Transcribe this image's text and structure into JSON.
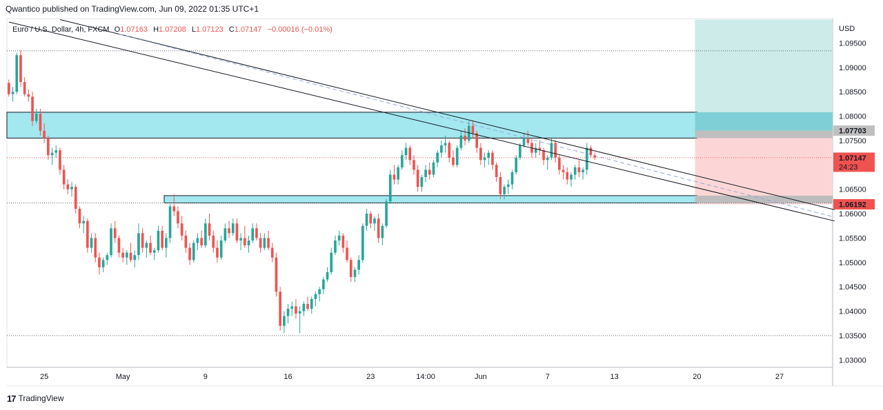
{
  "header": {
    "publisher": "Qwantico published on TradingView.com, Jun 09, 2022 01:35 UTC+1"
  },
  "footer": {
    "brand": "TradingView"
  },
  "colors": {
    "up": "#26a69a",
    "down": "#ef5350",
    "zone": "#9ee6ee",
    "target": "#cdebe8",
    "stop": "#fcd6d6"
  },
  "chart_data": {
    "type": "candlestick",
    "legend": {
      "symbol": "Euro / U.S. Dollar, 4h, FXCM",
      "open_label": "O",
      "open": "1.07163",
      "high_label": "H",
      "high": "1.07208",
      "low_label": "L",
      "low": "1.07123",
      "close_label": "C",
      "close": "1.07147",
      "change": "−0.00016 (−0.01%)"
    },
    "currency": "USD",
    "y_ticks": [
      "1.09500",
      "1.09000",
      "1.08500",
      "1.08000",
      "1.07500",
      "1.06500",
      "1.06000",
      "1.05500",
      "1.05000",
      "1.04500",
      "1.04000",
      "1.03500",
      "1.03000"
    ],
    "y_tick_values": [
      1.095,
      1.09,
      1.085,
      1.08,
      1.075,
      1.065,
      1.06,
      1.055,
      1.05,
      1.045,
      1.04,
      1.035,
      1.03
    ],
    "x_ticks": [
      {
        "label": "25",
        "bar": 9
      },
      {
        "label": "May",
        "bar": 29
      },
      {
        "label": "9",
        "bar": 50
      },
      {
        "label": "16",
        "bar": 71
      },
      {
        "label": "23",
        "bar": 92
      },
      {
        "label": "14:00",
        "bar": 106
      },
      {
        "label": "Jun",
        "bar": 120
      },
      {
        "label": "7",
        "bar": 137
      },
      {
        "label": "13",
        "bar": 154
      },
      {
        "label": "20",
        "bar": 175
      },
      {
        "label": "27",
        "bar": 196
      }
    ],
    "price_labels": [
      {
        "value": 1.07703,
        "text": "1.07703",
        "style": "gray"
      },
      {
        "value": 1.07147,
        "text": "1.07147",
        "sub": "24:23",
        "style": "red"
      },
      {
        "value": 1.06192,
        "text": "1.06192",
        "style": "red"
      }
    ],
    "zones": [
      {
        "name": "resistance-zone",
        "from_bar": -1,
        "to_bar": 175,
        "top": 1.0808,
        "bottom": 1.0755
      },
      {
        "name": "support-zone",
        "from_bar": 40,
        "to_bar": 175,
        "top": 1.0637,
        "bottom": 1.0622
      }
    ],
    "position": {
      "from_bar": 175,
      "to_bar": 210,
      "entry": 1.07703,
      "target": 1.0998,
      "stop": 1.06192
    },
    "dotted_levels": [
      1.0934,
      1.07147,
      1.0622,
      1.035
    ],
    "trendlines": [
      {
        "name": "upper-trendline",
        "bar1": 13,
        "price1": 1.0998,
        "bar2": 210,
        "price2": 1.0608,
        "style": "solid"
      },
      {
        "name": "middle-trendline",
        "bar1": 28,
        "price1": 1.0968,
        "bar2": 210,
        "price2": 1.0593,
        "style": "dashed"
      },
      {
        "name": "lower-trendline",
        "bar1": 0,
        "price1": 1.0993,
        "bar2": 210,
        "price2": 1.0585,
        "style": "solid"
      }
    ],
    "y_range": [
      1.0285,
      1.1
    ],
    "x_bars": 210,
    "candles": [
      [
        1.0868,
        1.0875,
        1.084,
        1.0845
      ],
      [
        1.0845,
        1.086,
        1.083,
        1.085
      ],
      [
        1.085,
        1.093,
        1.0845,
        1.0925
      ],
      [
        1.0925,
        1.0935,
        1.086,
        1.087
      ],
      [
        1.087,
        1.088,
        1.084,
        1.0845
      ],
      [
        1.0845,
        1.0855,
        1.083,
        1.084
      ],
      [
        1.084,
        1.085,
        1.078,
        1.079
      ],
      [
        1.079,
        1.0815,
        1.0785,
        1.0805
      ],
      [
        1.0805,
        1.0815,
        1.076,
        1.077
      ],
      [
        1.077,
        1.0785,
        1.0745,
        1.0755
      ],
      [
        1.0755,
        1.076,
        1.071,
        1.072
      ],
      [
        1.072,
        1.0735,
        1.07,
        1.0725
      ],
      [
        1.0725,
        1.074,
        1.0715,
        1.073
      ],
      [
        1.073,
        1.0735,
        1.068,
        1.069
      ],
      [
        1.069,
        1.07,
        1.065,
        1.066
      ],
      [
        1.066,
        1.067,
        1.064,
        1.065
      ],
      [
        1.065,
        1.0665,
        1.0635,
        1.0655
      ],
      [
        1.0655,
        1.066,
        1.06,
        1.061
      ],
      [
        1.061,
        1.0615,
        1.057,
        1.058
      ],
      [
        1.058,
        1.0595,
        1.056,
        1.0585
      ],
      [
        1.0585,
        1.059,
        1.052,
        1.053
      ],
      [
        1.053,
        1.056,
        1.052,
        1.055
      ],
      [
        1.055,
        1.056,
        1.05,
        1.051
      ],
      [
        1.051,
        1.052,
        1.0475,
        1.049
      ],
      [
        1.049,
        1.051,
        1.048,
        1.0505
      ],
      [
        1.0505,
        1.052,
        1.0495,
        1.0515
      ],
      [
        1.0515,
        1.058,
        1.051,
        1.057
      ],
      [
        1.057,
        1.0585,
        1.054,
        1.055
      ],
      [
        1.055,
        1.0555,
        1.051,
        1.052
      ],
      [
        1.052,
        1.053,
        1.05,
        1.051
      ],
      [
        1.051,
        1.0525,
        1.0495,
        1.052
      ],
      [
        1.052,
        1.054,
        1.05,
        1.0505
      ],
      [
        1.0505,
        1.0525,
        1.049,
        1.0515
      ],
      [
        1.0515,
        1.058,
        1.0505,
        1.056
      ],
      [
        1.056,
        1.057,
        1.052,
        1.053
      ],
      [
        1.053,
        1.0545,
        1.051,
        1.054
      ],
      [
        1.054,
        1.0555,
        1.0515,
        1.052
      ],
      [
        1.052,
        1.053,
        1.0505,
        1.0525
      ],
      [
        1.0525,
        1.0575,
        1.052,
        1.0565
      ],
      [
        1.0565,
        1.0575,
        1.0525,
        1.053
      ],
      [
        1.053,
        1.056,
        1.051,
        1.055
      ],
      [
        1.055,
        1.062,
        1.054,
        1.0615
      ],
      [
        1.0615,
        1.064,
        1.0595,
        1.0605
      ],
      [
        1.0605,
        1.0615,
        1.057,
        1.058
      ],
      [
        1.058,
        1.0595,
        1.0545,
        1.0555
      ],
      [
        1.0555,
        1.0565,
        1.052,
        1.053
      ],
      [
        1.053,
        1.054,
        1.0495,
        1.0505
      ],
      [
        1.0505,
        1.0545,
        1.05,
        1.054
      ],
      [
        1.054,
        1.056,
        1.0525,
        1.055
      ],
      [
        1.055,
        1.0565,
        1.053,
        1.0535
      ],
      [
        1.0535,
        1.059,
        1.053,
        1.058
      ],
      [
        1.058,
        1.06,
        1.0545,
        1.0555
      ],
      [
        1.0555,
        1.0565,
        1.052,
        1.053
      ],
      [
        1.053,
        1.0545,
        1.05,
        1.051
      ],
      [
        1.051,
        1.0555,
        1.0505,
        1.0545
      ],
      [
        1.0545,
        1.058,
        1.054,
        1.057
      ],
      [
        1.057,
        1.0585,
        1.055,
        1.056
      ],
      [
        1.056,
        1.059,
        1.0555,
        1.058
      ],
      [
        1.058,
        1.059,
        1.054,
        1.0545
      ],
      [
        1.0545,
        1.056,
        1.0525,
        1.055
      ],
      [
        1.055,
        1.0575,
        1.053,
        1.0535
      ],
      [
        1.0535,
        1.0555,
        1.052,
        1.0545
      ],
      [
        1.0545,
        1.058,
        1.054,
        1.057
      ],
      [
        1.057,
        1.058,
        1.0545,
        1.055
      ],
      [
        1.055,
        1.056,
        1.052,
        1.053
      ],
      [
        1.053,
        1.056,
        1.0525,
        1.055
      ],
      [
        1.055,
        1.0565,
        1.0525,
        1.053
      ],
      [
        1.053,
        1.054,
        1.05,
        1.051
      ],
      [
        1.051,
        1.052,
        1.043,
        1.044
      ],
      [
        1.044,
        1.045,
        1.036,
        1.037
      ],
      [
        1.037,
        1.04,
        1.0355,
        1.039
      ],
      [
        1.039,
        1.0415,
        1.0375,
        1.0405
      ],
      [
        1.0405,
        1.042,
        1.039,
        1.041
      ],
      [
        1.041,
        1.0425,
        1.0385,
        1.0395
      ],
      [
        1.0395,
        1.041,
        1.0355,
        1.04
      ],
      [
        1.04,
        1.042,
        1.039,
        1.0415
      ],
      [
        1.0415,
        1.043,
        1.04,
        1.0405
      ],
      [
        1.0405,
        1.043,
        1.0395,
        1.0425
      ],
      [
        1.0425,
        1.044,
        1.041,
        1.0435
      ],
      [
        1.0435,
        1.045,
        1.042,
        1.0445
      ],
      [
        1.0445,
        1.047,
        1.0435,
        1.0465
      ],
      [
        1.0465,
        1.049,
        1.046,
        1.048
      ],
      [
        1.048,
        1.053,
        1.0475,
        1.052
      ],
      [
        1.052,
        1.0555,
        1.0515,
        1.0545
      ],
      [
        1.0545,
        1.0565,
        1.0535,
        1.0555
      ],
      [
        1.0555,
        1.056,
        1.052,
        1.053
      ],
      [
        1.053,
        1.0545,
        1.05,
        1.0505
      ],
      [
        1.0505,
        1.051,
        1.046,
        1.047
      ],
      [
        1.047,
        1.049,
        1.046,
        1.0485
      ],
      [
        1.0485,
        1.0515,
        1.0475,
        1.0505
      ],
      [
        1.0505,
        1.058,
        1.05,
        1.0575
      ],
      [
        1.0575,
        1.061,
        1.0565,
        1.06
      ],
      [
        1.06,
        1.0605,
        1.057,
        1.058
      ],
      [
        1.058,
        1.0595,
        1.0565,
        1.059
      ],
      [
        1.059,
        1.06,
        1.054,
        1.055
      ],
      [
        1.055,
        1.058,
        1.0535,
        1.0575
      ],
      [
        1.0575,
        1.063,
        1.057,
        1.0625
      ],
      [
        1.0625,
        1.069,
        1.062,
        1.068
      ],
      [
        1.068,
        1.07,
        1.066,
        1.067
      ],
      [
        1.067,
        1.07,
        1.066,
        1.0695
      ],
      [
        1.0695,
        1.073,
        1.069,
        1.072
      ],
      [
        1.072,
        1.0745,
        1.071,
        1.0735
      ],
      [
        1.0735,
        1.074,
        1.07,
        1.071
      ],
      [
        1.071,
        1.072,
        1.068,
        1.069
      ],
      [
        1.069,
        1.07,
        1.0645,
        1.0655
      ],
      [
        1.0655,
        1.068,
        1.0645,
        1.0675
      ],
      [
        1.0675,
        1.07,
        1.0665,
        1.069
      ],
      [
        1.069,
        1.0705,
        1.067,
        1.068
      ],
      [
        1.068,
        1.071,
        1.0675,
        1.0705
      ],
      [
        1.0705,
        1.073,
        1.0695,
        1.0725
      ],
      [
        1.0725,
        1.075,
        1.0715,
        1.074
      ],
      [
        1.074,
        1.076,
        1.0725,
        1.0745
      ],
      [
        1.0745,
        1.075,
        1.0705,
        1.0715
      ],
      [
        1.0715,
        1.073,
        1.0695,
        1.07
      ],
      [
        1.07,
        1.074,
        1.0695,
        1.0735
      ],
      [
        1.0735,
        1.077,
        1.073,
        1.076
      ],
      [
        1.076,
        1.0775,
        1.074,
        1.075
      ],
      [
        1.075,
        1.079,
        1.0745,
        1.078
      ],
      [
        1.078,
        1.079,
        1.0755,
        1.0765
      ],
      [
        1.0765,
        1.077,
        1.0725,
        1.0735
      ],
      [
        1.0735,
        1.0745,
        1.07,
        1.071
      ],
      [
        1.071,
        1.0725,
        1.0695,
        1.0715
      ],
      [
        1.0715,
        1.073,
        1.07,
        1.0725
      ],
      [
        1.0725,
        1.073,
        1.069,
        1.07
      ],
      [
        1.07,
        1.0705,
        1.0665,
        1.0675
      ],
      [
        1.0675,
        1.0685,
        1.063,
        1.064
      ],
      [
        1.064,
        1.066,
        1.063,
        1.0655
      ],
      [
        1.0655,
        1.067,
        1.064,
        1.066
      ],
      [
        1.066,
        1.069,
        1.065,
        1.0685
      ],
      [
        1.0685,
        1.072,
        1.068,
        1.0715
      ],
      [
        1.0715,
        1.0745,
        1.071,
        1.074
      ],
      [
        1.074,
        1.0765,
        1.0735,
        1.0755
      ],
      [
        1.0755,
        1.077,
        1.074,
        1.0745
      ],
      [
        1.0745,
        1.0755,
        1.0715,
        1.0725
      ],
      [
        1.0725,
        1.0745,
        1.0715,
        1.0735
      ],
      [
        1.0735,
        1.075,
        1.072,
        1.073
      ],
      [
        1.073,
        1.0735,
        1.07,
        1.071
      ],
      [
        1.071,
        1.072,
        1.069,
        1.0715
      ],
      [
        1.0715,
        1.0755,
        1.071,
        1.0745
      ],
      [
        1.0745,
        1.075,
        1.0705,
        1.0715
      ],
      [
        1.0715,
        1.072,
        1.068,
        1.069
      ],
      [
        1.069,
        1.07,
        1.067,
        1.0685
      ],
      [
        1.0685,
        1.0695,
        1.066,
        1.067
      ],
      [
        1.067,
        1.0685,
        1.0655,
        1.068
      ],
      [
        1.068,
        1.07,
        1.067,
        1.0695
      ],
      [
        1.0695,
        1.071,
        1.0675,
        1.0685
      ],
      [
        1.0685,
        1.0695,
        1.067,
        1.069
      ],
      [
        1.069,
        1.0745,
        1.068,
        1.0735
      ],
      [
        1.0735,
        1.074,
        1.0715,
        1.072
      ],
      [
        1.072,
        1.0725,
        1.071,
        1.0715
      ]
    ]
  }
}
